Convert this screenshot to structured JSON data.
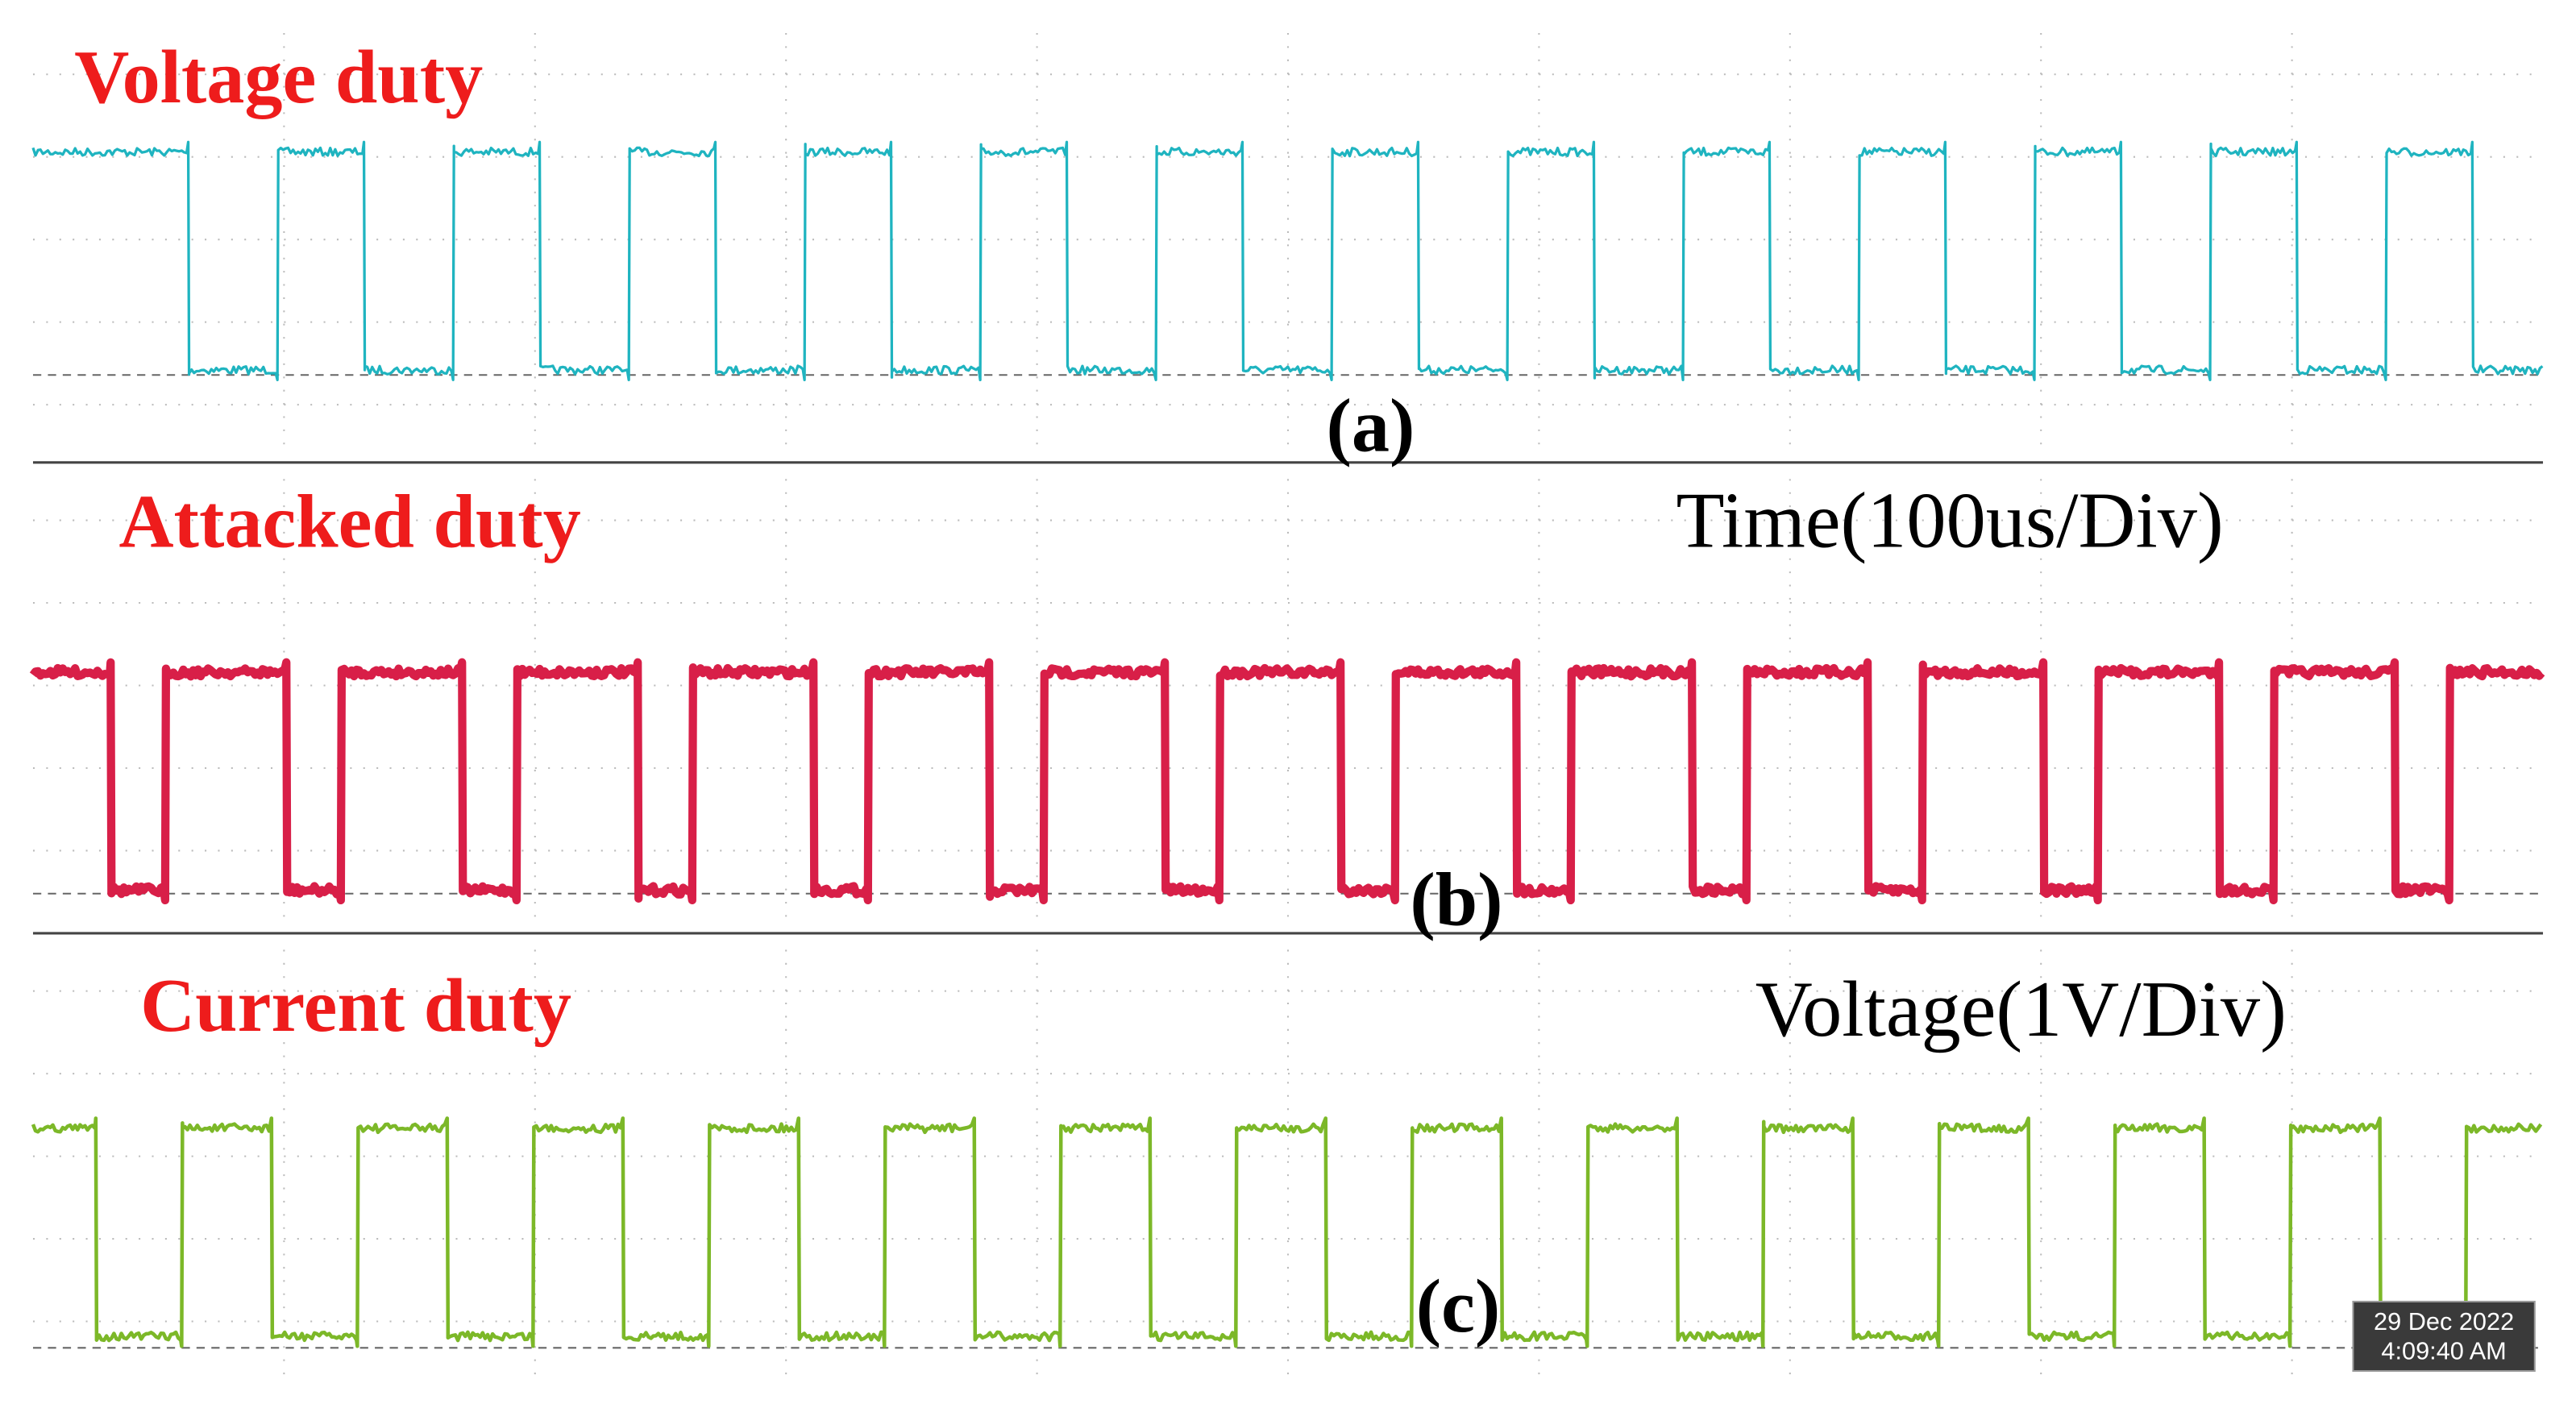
{
  "panels": [
    {
      "label": "Voltage duty",
      "tag": "(a)"
    },
    {
      "label": "Attacked duty",
      "tag": "(b)"
    },
    {
      "label": "Current duty",
      "tag": "(c)"
    }
  ],
  "scale_notes": {
    "time": "Time(100us/Div)",
    "voltage": "Voltage(1V/Div)"
  },
  "timestamp": {
    "date": "29 Dec 2022",
    "time": "4:09:40 AM"
  }
}
